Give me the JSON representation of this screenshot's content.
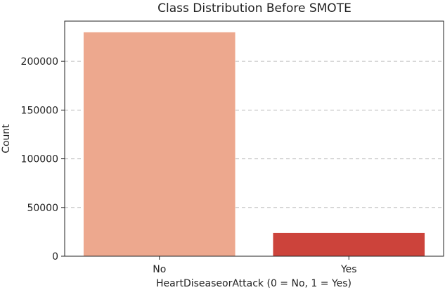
{
  "chart_data": {
    "type": "bar",
    "title": "Class Distribution Before SMOTE",
    "xlabel": "HeartDiseaseorAttack (0 = No, 1 = Yes)",
    "ylabel": "Count",
    "categories": [
      "No",
      "Yes"
    ],
    "values": [
      229787,
      23893
    ],
    "ylim": [
      0,
      241276
    ],
    "yticks": [
      0,
      50000,
      100000,
      150000,
      200000
    ],
    "ytick_labels": [
      "0",
      "50000",
      "100000",
      "150000",
      "200000"
    ],
    "grid": "y-dashed",
    "colors": [
      "#eda88e",
      "#cc433b"
    ]
  }
}
